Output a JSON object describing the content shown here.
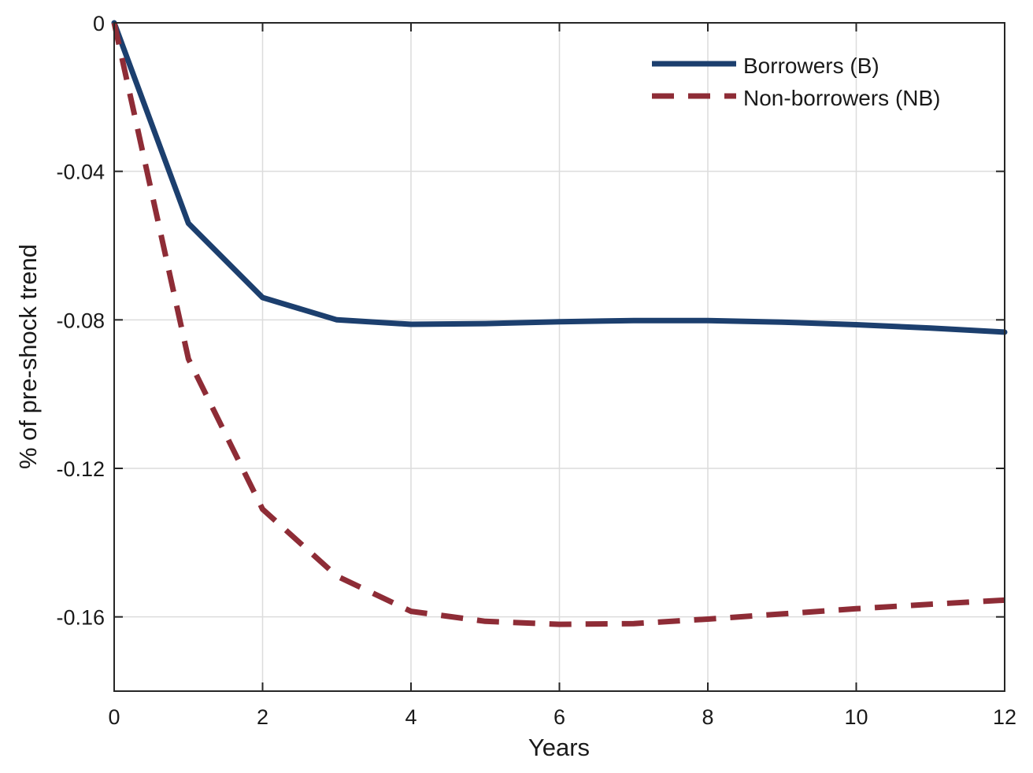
{
  "chart_data": {
    "type": "line",
    "title": "",
    "xlabel": "Years",
    "ylabel": "% of pre-shock trend",
    "xlim": [
      0,
      12
    ],
    "ylim": [
      -0.18,
      0
    ],
    "xticks": [
      0,
      2,
      4,
      6,
      8,
      10,
      12
    ],
    "xtick_labels": [
      "0",
      "2",
      "4",
      "6",
      "8",
      "10",
      "12"
    ],
    "yticks": [
      0,
      -0.04,
      -0.08,
      -0.12,
      -0.16
    ],
    "ytick_labels": [
      "0",
      "-0.04",
      "-0.08",
      "-0.12",
      "-0.16"
    ],
    "grid": true,
    "legend_position": "top-right",
    "x": [
      0,
      1,
      2,
      3,
      4,
      5,
      6,
      7,
      8,
      9,
      10,
      11,
      12
    ],
    "series": [
      {
        "name": "Borrowers (B)",
        "color": "#1c3f6e",
        "style": "solid",
        "values": [
          0,
          -0.054,
          -0.074,
          -0.08,
          -0.0812,
          -0.081,
          -0.0805,
          -0.0802,
          -0.0802,
          -0.0806,
          -0.0813,
          -0.0822,
          -0.0833
        ]
      },
      {
        "name": "Non-borrowers (NB)",
        "color": "#8e2c36",
        "style": "dashed",
        "values": [
          0,
          -0.0905,
          -0.131,
          -0.149,
          -0.1585,
          -0.1612,
          -0.162,
          -0.1618,
          -0.1606,
          -0.1592,
          -0.1578,
          -0.1566,
          -0.1555
        ]
      }
    ]
  }
}
